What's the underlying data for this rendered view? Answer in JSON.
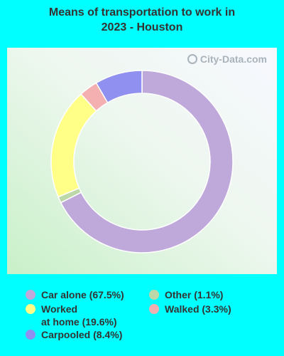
{
  "title_line1": "Means of transportation to work in",
  "title_line2": "2023 - Houston",
  "watermark": "City-Data.com",
  "chart_data": {
    "type": "pie",
    "variant": "donut",
    "start_angle_deg": 0,
    "direction": "clockwise",
    "slices": [
      {
        "label": "Car alone",
        "value": 67.5,
        "color": "#bfa8da",
        "legend": "Car alone (67.5%)"
      },
      {
        "label": "Other",
        "value": 1.1,
        "color": "#bcd8a8",
        "legend": "Other (1.1%)"
      },
      {
        "label": "Worked at home",
        "value": 19.6,
        "color": "#ffff88",
        "legend": "Worked\nat home (19.6%)"
      },
      {
        "label": "Walked",
        "value": 3.3,
        "color": "#f4b0b0",
        "legend": "Walked (3.3%)"
      },
      {
        "label": "Carpooled",
        "value": 8.4,
        "color": "#9090f0",
        "legend": "Carpooled (8.4%)"
      }
    ],
    "legend_placement": "bottom"
  }
}
